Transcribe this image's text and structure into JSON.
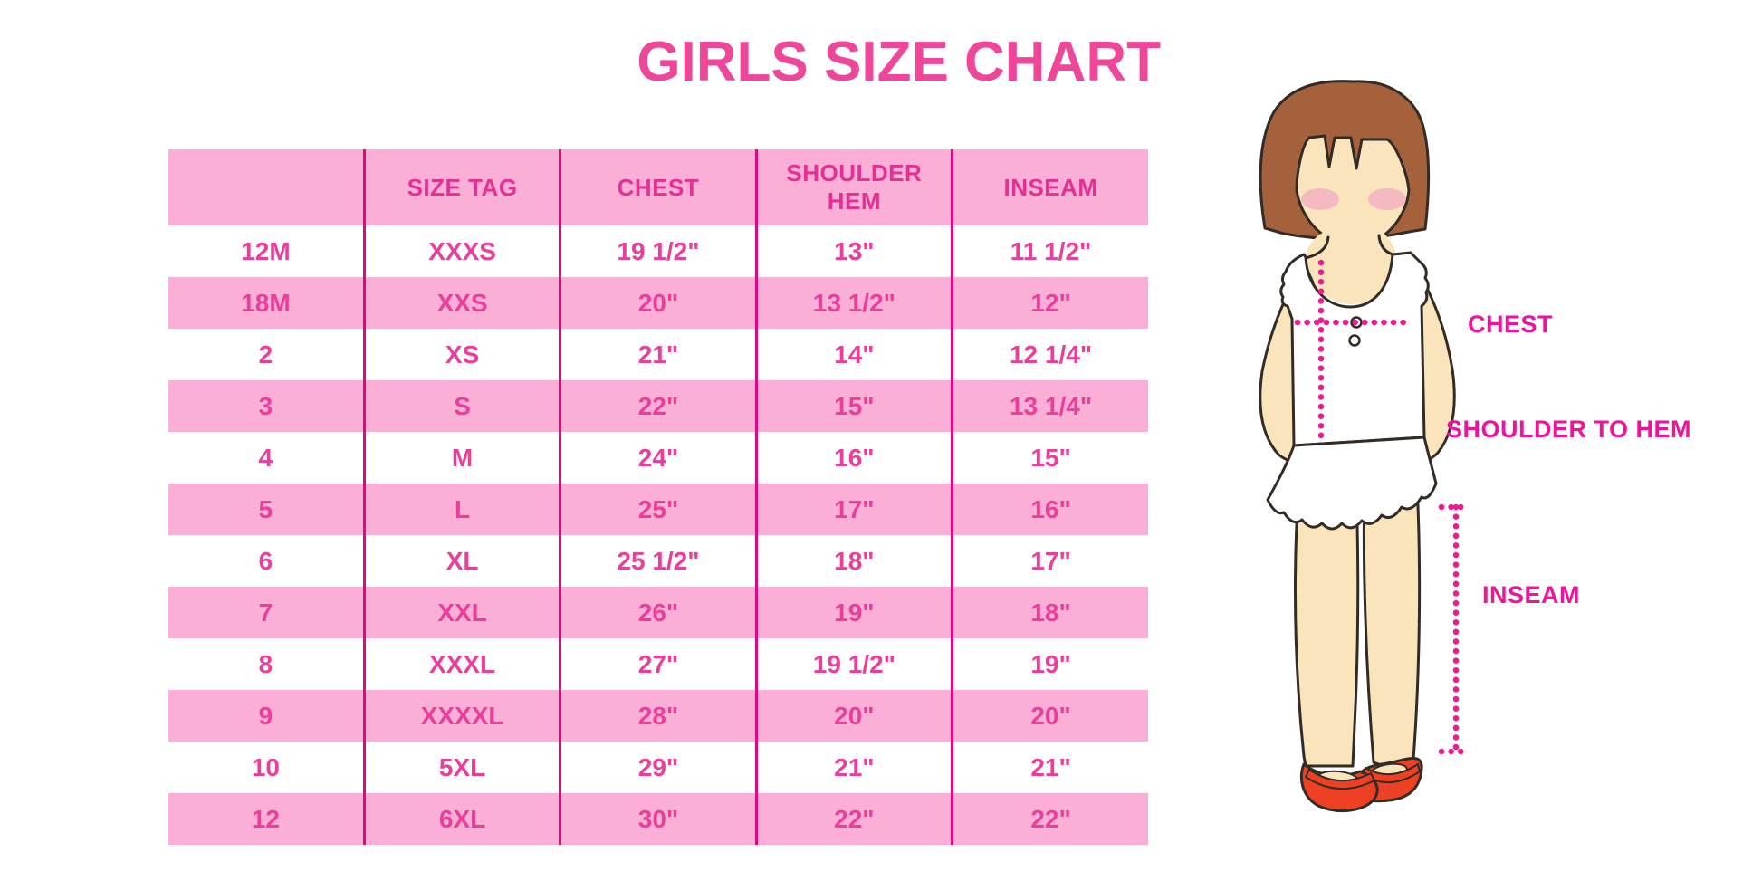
{
  "title": "GIRLS SIZE CHART",
  "chart_data": {
    "type": "table",
    "title": "GIRLS SIZE CHART",
    "columns": [
      "",
      "SIZE TAG",
      "CHEST",
      "SHOULDER HEM",
      "INSEAM"
    ],
    "rows": [
      [
        "12M",
        "XXXS",
        "19 1/2\"",
        "13\"",
        "11 1/2\""
      ],
      [
        "18M",
        "XXS",
        "20\"",
        "13 1/2\"",
        "12\""
      ],
      [
        "2",
        "XS",
        "21\"",
        "14\"",
        "12 1/4\""
      ],
      [
        "3",
        "S",
        "22\"",
        "15\"",
        "13 1/4\""
      ],
      [
        "4",
        "M",
        "24\"",
        "16\"",
        "15\""
      ],
      [
        "5",
        "L",
        "25\"",
        "17\"",
        "16\""
      ],
      [
        "6",
        "XL",
        "25 1/2\"",
        "18\"",
        "17\""
      ],
      [
        "7",
        "XXL",
        "26\"",
        "19\"",
        "18\""
      ],
      [
        "8",
        "XXXL",
        "27\"",
        "19 1/2\"",
        "19\""
      ],
      [
        "9",
        "XXXXL",
        "28\"",
        "20\"",
        "20\""
      ],
      [
        "10",
        "5XL",
        "29\"",
        "21\"",
        "21\""
      ],
      [
        "12",
        "6XL",
        "30\"",
        "22\"",
        "22\""
      ]
    ],
    "layout": {
      "alternating_rows": "white / pink starting white after pink header",
      "column_dividers": true,
      "horizontal_lines": false
    }
  },
  "figure_labels": {
    "chest": "CHEST",
    "shoulder_to_hem": "SHOULDER TO HEM",
    "inseam": "INSEAM"
  },
  "colors": {
    "title_pink": "#EE4699",
    "row_pink": "#FBAED6",
    "divider_magenta": "#E0087F",
    "cell_text_pink": "#EB3E9A",
    "header_text_pink": "#E53092",
    "label_magenta": "#F0129B",
    "dotted_line_magenta": "#ED1A90",
    "hair_brown": "#A5613C",
    "skin": "#FAE4BC",
    "blush": "#F4AEC2",
    "shoe_red": "#EE4023",
    "outline": "#332C26"
  }
}
